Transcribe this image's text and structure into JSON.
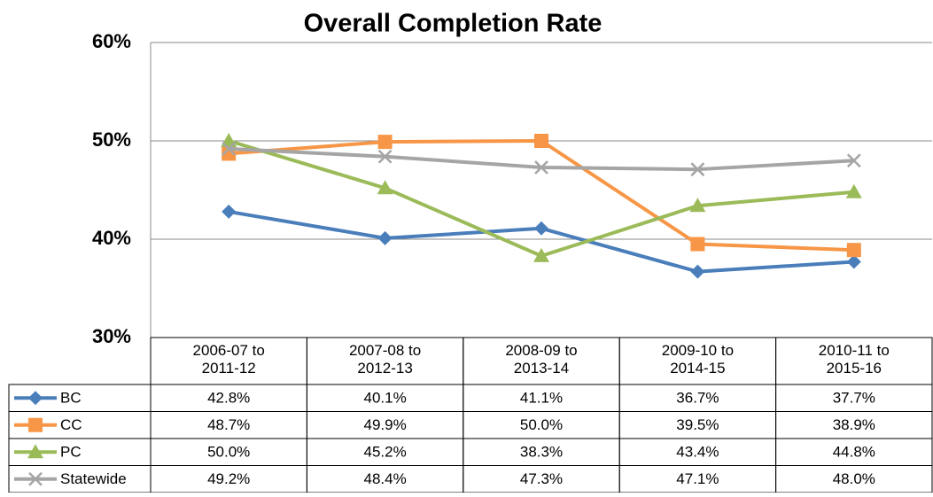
{
  "chart_data": {
    "type": "line",
    "title": "Overall Completion Rate",
    "categories": [
      "2006-07 to\n2011-12",
      "2007-08 to\n2012-13",
      "2008-09 to\n2013-14",
      "2009-10 to\n2014-15",
      "2010-11 to\n2015-16"
    ],
    "ylim": [
      30,
      60
    ],
    "yticks": [
      {
        "value": 30,
        "label": "30%"
      },
      {
        "value": 40,
        "label": "40%"
      },
      {
        "value": 50,
        "label": "50%"
      },
      {
        "value": 60,
        "label": "60%"
      }
    ],
    "grid": true,
    "series": [
      {
        "name": "BC",
        "color": "#4a7ebb",
        "marker": "diamond",
        "values": [
          42.8,
          40.1,
          41.1,
          36.7,
          37.7
        ],
        "value_labels": [
          "42.8%",
          "40.1%",
          "41.1%",
          "36.7%",
          "37.7%"
        ]
      },
      {
        "name": "CC",
        "color": "#f79646",
        "marker": "square",
        "values": [
          48.7,
          49.9,
          50.0,
          39.5,
          38.9
        ],
        "value_labels": [
          "48.7%",
          "49.9%",
          "50.0%",
          "39.5%",
          "38.9%"
        ]
      },
      {
        "name": "PC",
        "color": "#9bbb59",
        "marker": "triangle",
        "values": [
          50.0,
          45.2,
          38.3,
          43.4,
          44.8
        ],
        "value_labels": [
          "50.0%",
          "45.2%",
          "38.3%",
          "43.4%",
          "44.8%"
        ]
      },
      {
        "name": "Statewide",
        "color": "#a5a5a5",
        "marker": "x",
        "values": [
          49.2,
          48.4,
          47.3,
          47.1,
          48.0
        ],
        "value_labels": [
          "49.2%",
          "48.4%",
          "47.3%",
          "47.1%",
          "48.0%"
        ]
      }
    ]
  }
}
